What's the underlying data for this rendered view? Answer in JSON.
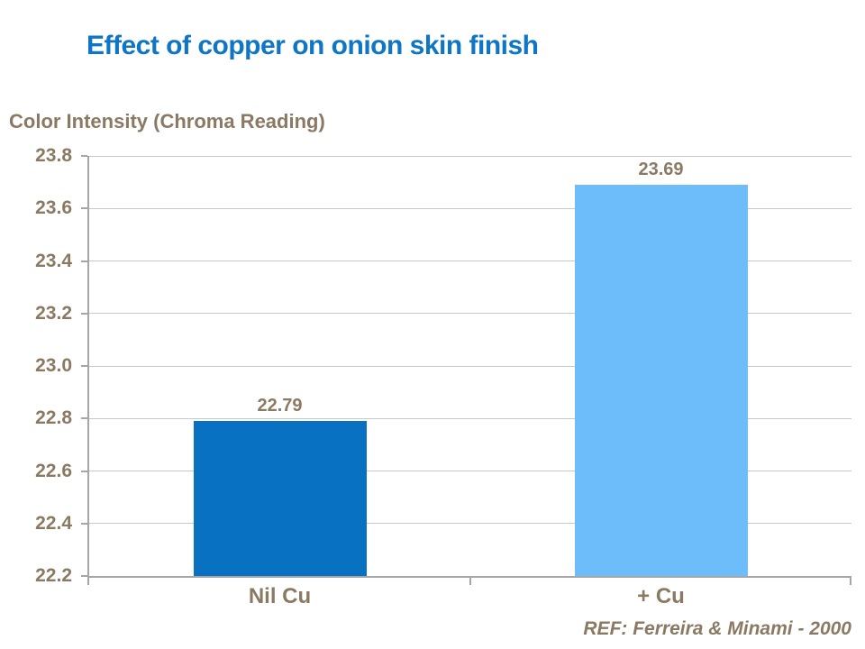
{
  "slide": {
    "reference": "REF: Ferreira & Minami - 2000"
  },
  "chart_data": {
    "type": "bar",
    "title": "Effect of copper on onion skin finish",
    "ylabel": "Color Intensity (Chroma Reading)",
    "xlabel": "",
    "categories": [
      "Nil Cu",
      "+ Cu"
    ],
    "values": [
      22.79,
      23.69
    ],
    "value_labels": [
      "22.79",
      "23.69"
    ],
    "bar_colors": [
      "#0971c1",
      "#6cbdfa"
    ],
    "ylim": [
      22.2,
      23.8
    ],
    "ytick_step": 0.2,
    "yticks": [
      "23.8",
      "23.6",
      "23.4",
      "23.2",
      "23.0",
      "22.8",
      "22.6",
      "22.4",
      "22.2"
    ],
    "grid": true,
    "legend": false,
    "annotations": [
      "REF: Ferreira & Minami - 2000"
    ]
  },
  "colors": {
    "title_blue": "#0e76c5",
    "text_brown": "#8a7a63",
    "gridline": "#c8c8c8",
    "axis": "#a6a6a6",
    "bar_nil_cu": "#0971c1",
    "bar_plus_cu": "#6cbdfa",
    "background": "#ffffff"
  }
}
